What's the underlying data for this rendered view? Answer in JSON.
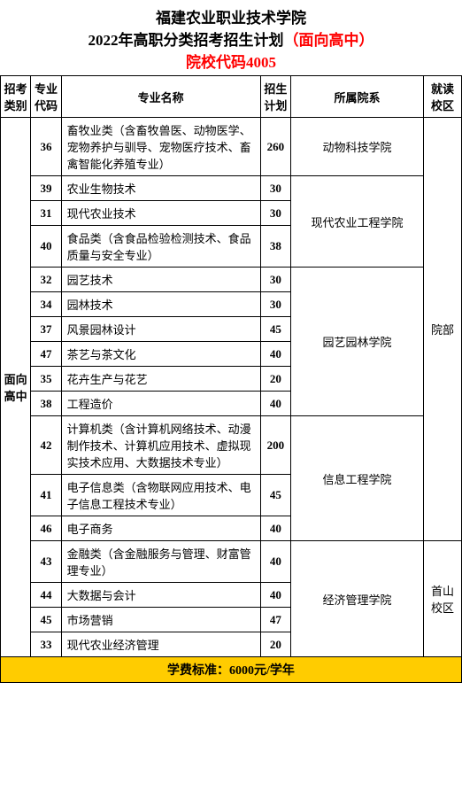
{
  "header": {
    "line1": "福建农业职业技术学院",
    "line2a": "2022年高职分类招考招生计划",
    "line2b": "（面向高中）",
    "line3": "院校代码4005"
  },
  "columns": {
    "category": "招考类别",
    "majorCode": "专业代码",
    "majorName": "专业名称",
    "plan": "招生计划",
    "dept": "所属院系",
    "campus": "就读校区"
  },
  "categoryCell": "面向高中",
  "campusGroups": [
    {
      "label": "院部",
      "span": 13
    },
    {
      "label": "首山校区",
      "span": 4
    }
  ],
  "deptGroups": [
    {
      "label": "动物科技学院",
      "span": 1
    },
    {
      "label": "现代农业工程学院",
      "span": 3
    },
    {
      "label": "园艺园林学院",
      "span": 6
    },
    {
      "label": "信息工程学院",
      "span": 3
    },
    {
      "label": "经济管理学院",
      "span": 4
    }
  ],
  "rows": [
    {
      "code": "36",
      "name": "畜牧业类（含畜牧兽医、动物医学、宠物养护与驯导、宠物医疗技术、畜禽智能化养殖专业）",
      "plan": "260"
    },
    {
      "code": "39",
      "name": "农业生物技术",
      "plan": "30"
    },
    {
      "code": "31",
      "name": "现代农业技术",
      "plan": "30"
    },
    {
      "code": "40",
      "name": "食品类（含食品检验检测技术、食品质量与安全专业）",
      "plan": "38"
    },
    {
      "code": "32",
      "name": "园艺技术",
      "plan": "30"
    },
    {
      "code": "34",
      "name": "园林技术",
      "plan": "30"
    },
    {
      "code": "37",
      "name": "风景园林设计",
      "plan": "45"
    },
    {
      "code": "47",
      "name": "茶艺与茶文化",
      "plan": "40"
    },
    {
      "code": "35",
      "name": "花卉生产与花艺",
      "plan": "20"
    },
    {
      "code": "38",
      "name": "工程造价",
      "plan": "40"
    },
    {
      "code": "42",
      "name": "计算机类（含计算机网络技术、动漫制作技术、计算机应用技术、虚拟现实技术应用、大数据技术专业）",
      "plan": "200"
    },
    {
      "code": "41",
      "name": "电子信息类（含物联网应用技术、电子信息工程技术专业）",
      "plan": "45"
    },
    {
      "code": "46",
      "name": "电子商务",
      "plan": "40"
    },
    {
      "code": "43",
      "name": "金融类（含金融服务与管理、财富管理专业）",
      "plan": "40"
    },
    {
      "code": "44",
      "name": "大数据与会计",
      "plan": "40"
    },
    {
      "code": "45",
      "name": "市场营销",
      "plan": "47"
    },
    {
      "code": "33",
      "name": "现代农业经济管理",
      "plan": "20"
    }
  ],
  "footer": "学费标准：6000元/学年",
  "style": {
    "headerColor": "#000000",
    "redColor": "#ff0000",
    "footerBg": "#ffcc00",
    "borderColor": "#000000"
  }
}
